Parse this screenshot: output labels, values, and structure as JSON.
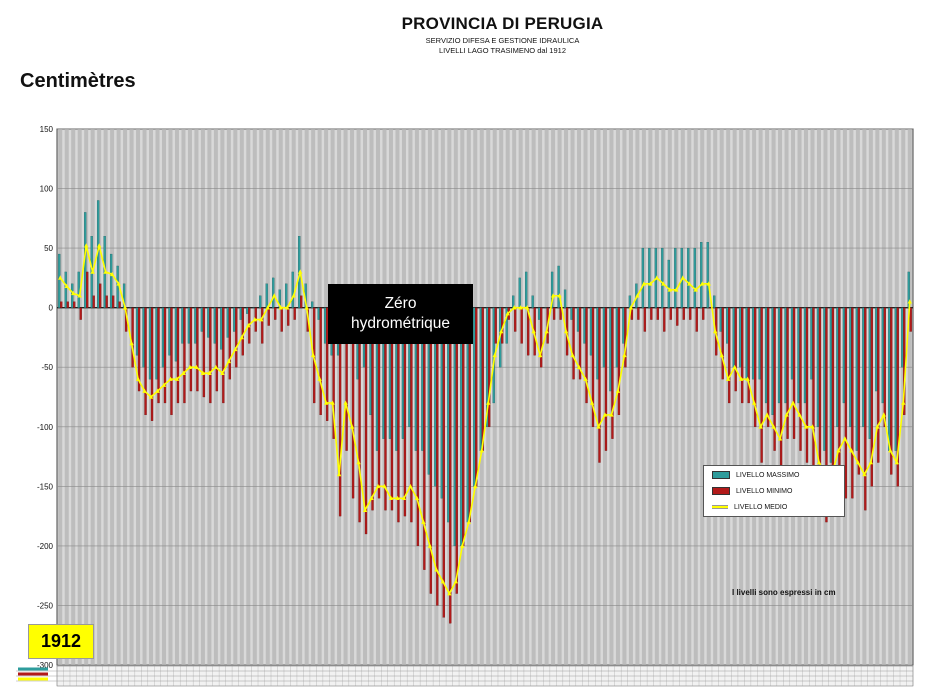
{
  "header": {
    "title": "PROVINCIA DI PERUGIA",
    "line1": "SERVIZIO DIFESA E GESTIONE IDRAULICA",
    "line2": "LIVELLI LAGO TRASIMENO  dal 1912"
  },
  "annotations": {
    "zero_line1": "Zéro",
    "zero_line2": "hydrométrique",
    "start_year": "1912",
    "note": "I livelli sono espressi in cm"
  },
  "colors": {
    "max": "#2e9c9c",
    "min": "#b21a1a",
    "mean": "#ffff00",
    "background_bar": "#bdbdbd"
  },
  "chart_data": {
    "type": "bar",
    "ylabel": "Centimètres",
    "ylim": [
      -300,
      150
    ],
    "yticks": [
      150,
      100,
      50,
      0,
      -50,
      -100,
      -150,
      -200,
      -250,
      -300
    ],
    "grid": true,
    "legend_position": "right",
    "x_start_year": 1912,
    "series": [
      {
        "name": "LIVELLO MASSIMO",
        "values": [
          45,
          30,
          20,
          30,
          80,
          60,
          90,
          60,
          45,
          35,
          20,
          0,
          -40,
          -50,
          -60,
          -60,
          -50,
          -40,
          -45,
          -30,
          -30,
          -30,
          -20,
          -25,
          -30,
          -35,
          -25,
          -20,
          -10,
          -5,
          0,
          10,
          20,
          25,
          15,
          20,
          30,
          60,
          20,
          5,
          -10,
          -30,
          -40,
          -40,
          -30,
          -20,
          -60,
          -50,
          -90,
          -120,
          -110,
          -110,
          -120,
          -110,
          -100,
          -120,
          -120,
          -140,
          -150,
          -160,
          -180,
          -200,
          -200,
          -180,
          -150,
          -120,
          -100,
          -80,
          -50,
          -30,
          10,
          25,
          30,
          10,
          -10,
          0,
          30,
          35,
          15,
          -10,
          -20,
          -30,
          -40,
          -60,
          -50,
          -70,
          -50,
          -30,
          10,
          20,
          50,
          50,
          50,
          50,
          40,
          50,
          50,
          50,
          50,
          55,
          55,
          10,
          -20,
          -30,
          -50,
          -50,
          -60,
          -60,
          -60,
          -80,
          -90,
          -80,
          -80,
          -60,
          -80,
          -80,
          -60,
          -100,
          -120,
          -130,
          -100,
          -80,
          -100,
          -120,
          -100,
          -110,
          -70,
          -80,
          -120,
          -120,
          -50,
          30
        ],
        "color": "#2e9c9c"
      },
      {
        "name": "LIVELLO MINIMO",
        "values": [
          5,
          5,
          5,
          -10,
          30,
          10,
          20,
          10,
          10,
          5,
          -20,
          -50,
          -70,
          -90,
          -95,
          -80,
          -80,
          -90,
          -80,
          -80,
          -70,
          -70,
          -75,
          -80,
          -70,
          -80,
          -60,
          -50,
          -40,
          -30,
          -20,
          -30,
          -15,
          -10,
          -20,
          -15,
          -10,
          10,
          -20,
          -80,
          -90,
          -95,
          -110,
          -175,
          -120,
          -160,
          -180,
          -190,
          -170,
          -160,
          -170,
          -170,
          -180,
          -175,
          -180,
          -200,
          -220,
          -240,
          -250,
          -260,
          -265,
          -240,
          -200,
          -180,
          -150,
          -120,
          -100,
          -30,
          -30,
          -10,
          -20,
          -30,
          -40,
          -40,
          -50,
          -30,
          -10,
          -10,
          -40,
          -60,
          -60,
          -80,
          -100,
          -130,
          -120,
          -110,
          -90,
          -50,
          -10,
          -10,
          -20,
          -10,
          -10,
          -20,
          -10,
          -15,
          -10,
          -10,
          -20,
          -10,
          0,
          -40,
          -60,
          -80,
          -70,
          -80,
          -80,
          -100,
          -130,
          -100,
          -120,
          -140,
          -110,
          -110,
          -120,
          -130,
          -140,
          -170,
          -180,
          -170,
          -150,
          -160,
          -160,
          -140,
          -170,
          -150,
          -130,
          -100,
          -140,
          -150,
          -90,
          -20
        ],
        "color": "#b21a1a"
      },
      {
        "name": "LIVELLO MEDIO",
        "values": [
          25,
          18,
          12,
          10,
          52,
          30,
          52,
          30,
          28,
          20,
          0,
          -30,
          -60,
          -70,
          -75,
          -70,
          -65,
          -60,
          -60,
          -55,
          -50,
          -50,
          -55,
          -55,
          -50,
          -55,
          -45,
          -35,
          -25,
          -15,
          -10,
          -10,
          0,
          10,
          0,
          0,
          10,
          30,
          0,
          -40,
          -60,
          -80,
          -80,
          -140,
          -80,
          -100,
          -130,
          -170,
          -160,
          -150,
          -150,
          -160,
          -160,
          -160,
          -150,
          -160,
          -180,
          -200,
          -220,
          -230,
          -240,
          -230,
          -200,
          -180,
          -150,
          -120,
          -80,
          -40,
          -20,
          -5,
          0,
          0,
          0,
          -20,
          -40,
          -20,
          10,
          10,
          -20,
          -40,
          -50,
          -60,
          -80,
          -100,
          -90,
          -90,
          -70,
          -40,
          0,
          10,
          20,
          20,
          25,
          20,
          15,
          15,
          25,
          20,
          15,
          20,
          20,
          -20,
          -40,
          -60,
          -50,
          -60,
          -60,
          -80,
          -100,
          -90,
          -100,
          -110,
          -90,
          -80,
          -90,
          -100,
          -100,
          -130,
          -140,
          -140,
          -120,
          -110,
          -120,
          -130,
          -140,
          -130,
          -100,
          -90,
          -120,
          -130,
          -80,
          5
        ],
        "color": "#ffff00"
      }
    ]
  }
}
